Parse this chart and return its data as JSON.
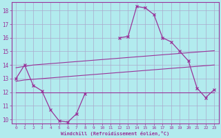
{
  "xlabel": "Windchill (Refroidissement éolien,°C)",
  "bg_color": "#b2ebee",
  "grid_color": "#aaaacc",
  "line_color": "#993399",
  "x_values": [
    0,
    1,
    2,
    3,
    4,
    5,
    6,
    7,
    8,
    9,
    10,
    11,
    12,
    13,
    14,
    15,
    16,
    17,
    18,
    19,
    20,
    21,
    22,
    23
  ],
  "y_main": [
    13.0,
    14.0,
    12.5,
    12.1,
    10.7,
    9.9,
    9.8,
    10.4,
    11.9,
    null,
    null,
    null,
    16.0,
    16.1,
    18.3,
    18.2,
    17.7,
    16.0,
    15.7,
    15.0,
    14.3,
    12.3,
    11.6,
    12.2
  ],
  "y_trend_upper": [
    13.8,
    13.9,
    14.0,
    14.05,
    14.1,
    14.15,
    14.2,
    14.25,
    14.3,
    14.35,
    14.4,
    14.45,
    14.5,
    14.55,
    14.6,
    14.65,
    14.7,
    14.75,
    14.8,
    14.85,
    14.9,
    14.95,
    15.0,
    15.05
  ],
  "y_trend_lower": [
    12.8,
    12.9,
    12.95,
    13.0,
    13.05,
    13.1,
    13.15,
    13.2,
    13.25,
    13.3,
    13.35,
    13.4,
    13.45,
    13.5,
    13.55,
    13.6,
    13.65,
    13.7,
    13.75,
    13.8,
    13.85,
    13.9,
    13.95,
    14.0
  ],
  "y_flat": [
    12.0,
    12.0,
    12.0,
    12.0,
    12.0,
    12.0,
    12.0,
    12.0,
    12.0,
    12.0,
    12.0,
    12.0,
    12.0,
    12.0,
    12.0,
    12.0,
    12.0,
    12.0,
    12.0,
    12.0,
    12.0,
    12.0,
    12.0,
    12.0
  ],
  "ylim": [
    9.7,
    18.6
  ],
  "yticks": [
    10,
    11,
    12,
    13,
    14,
    15,
    16,
    17,
    18
  ],
  "xticks": [
    0,
    1,
    2,
    3,
    4,
    5,
    6,
    7,
    8,
    9,
    10,
    11,
    12,
    13,
    14,
    15,
    16,
    17,
    18,
    19,
    20,
    21,
    22,
    23
  ],
  "xlim": [
    -0.5,
    23.5
  ]
}
